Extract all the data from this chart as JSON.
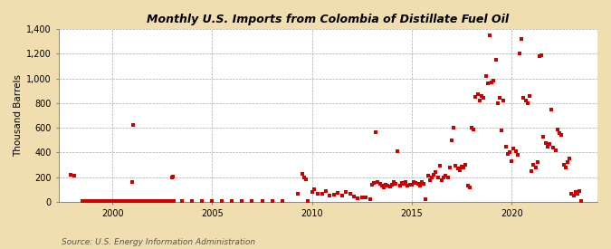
{
  "title": "Monthly U.S. Imports from Colombia of Distillate Fuel Oil",
  "ylabel": "Thousand Barrels",
  "source": "Source: U.S. Energy Information Administration",
  "background_color": "#f0deb0",
  "plot_bg_color": "#ffffff",
  "marker_color": "#cc0000",
  "marker_size": 8,
  "ylim": [
    0,
    1400
  ],
  "yticks": [
    0,
    200,
    400,
    600,
    800,
    1000,
    1200,
    1400
  ],
  "ytick_labels": [
    "0",
    "200",
    "400",
    "600",
    "800",
    "1,000",
    "1,200",
    "1,400"
  ],
  "xlim_start": 1997.3,
  "xlim_end": 2024.3,
  "xticks": [
    2000,
    2005,
    2010,
    2015,
    2020
  ],
  "grid_color": "#aaaaaa",
  "vline_color": "#aaaaaa",
  "data": [
    [
      1997.9,
      220
    ],
    [
      1998.1,
      210
    ],
    [
      1998.5,
      8
    ],
    [
      1998.6,
      8
    ],
    [
      1998.7,
      8
    ],
    [
      1998.8,
      8
    ],
    [
      1998.9,
      8
    ],
    [
      1999.0,
      8
    ],
    [
      1999.1,
      8
    ],
    [
      1999.2,
      8
    ],
    [
      1999.3,
      8
    ],
    [
      1999.4,
      8
    ],
    [
      1999.5,
      8
    ],
    [
      1999.6,
      8
    ],
    [
      1999.7,
      8
    ],
    [
      1999.8,
      8
    ],
    [
      1999.9,
      8
    ],
    [
      2000.0,
      8
    ],
    [
      2000.05,
      8
    ],
    [
      2000.1,
      8
    ],
    [
      2000.15,
      8
    ],
    [
      2000.2,
      8
    ],
    [
      2000.25,
      8
    ],
    [
      2000.3,
      8
    ],
    [
      2000.35,
      8
    ],
    [
      2000.4,
      8
    ],
    [
      2000.45,
      8
    ],
    [
      2000.5,
      8
    ],
    [
      2000.55,
      8
    ],
    [
      2000.6,
      8
    ],
    [
      2000.65,
      8
    ],
    [
      2000.7,
      8
    ],
    [
      2000.75,
      8
    ],
    [
      2000.8,
      8
    ],
    [
      2000.85,
      8
    ],
    [
      2000.9,
      8
    ],
    [
      2000.95,
      8
    ],
    [
      2001.0,
      160
    ],
    [
      2001.05,
      625
    ],
    [
      2001.1,
      8
    ],
    [
      2001.2,
      8
    ],
    [
      2001.3,
      8
    ],
    [
      2001.4,
      8
    ],
    [
      2001.5,
      8
    ],
    [
      2001.6,
      8
    ],
    [
      2001.7,
      8
    ],
    [
      2001.8,
      8
    ],
    [
      2001.9,
      8
    ],
    [
      2002.0,
      8
    ],
    [
      2002.1,
      8
    ],
    [
      2002.2,
      8
    ],
    [
      2002.3,
      8
    ],
    [
      2002.4,
      8
    ],
    [
      2002.5,
      8
    ],
    [
      2002.6,
      8
    ],
    [
      2002.7,
      8
    ],
    [
      2002.8,
      8
    ],
    [
      2002.9,
      8
    ],
    [
      2003.0,
      200
    ],
    [
      2003.05,
      205
    ],
    [
      2003.1,
      8
    ],
    [
      2003.5,
      8
    ],
    [
      2004.0,
      8
    ],
    [
      2004.5,
      8
    ],
    [
      2005.0,
      8
    ],
    [
      2005.5,
      8
    ],
    [
      2006.0,
      8
    ],
    [
      2006.5,
      8
    ],
    [
      2007.0,
      8
    ],
    [
      2007.5,
      8
    ],
    [
      2008.0,
      8
    ],
    [
      2008.5,
      8
    ],
    [
      2009.3,
      70
    ],
    [
      2009.5,
      230
    ],
    [
      2009.6,
      200
    ],
    [
      2009.7,
      185
    ],
    [
      2009.8,
      8
    ],
    [
      2010.0,
      80
    ],
    [
      2010.1,
      100
    ],
    [
      2010.3,
      65
    ],
    [
      2010.5,
      70
    ],
    [
      2010.7,
      90
    ],
    [
      2010.9,
      55
    ],
    [
      2011.1,
      60
    ],
    [
      2011.3,
      75
    ],
    [
      2011.5,
      50
    ],
    [
      2011.7,
      80
    ],
    [
      2011.9,
      65
    ],
    [
      2012.1,
      45
    ],
    [
      2012.3,
      30
    ],
    [
      2012.5,
      40
    ],
    [
      2012.7,
      35
    ],
    [
      2012.9,
      25
    ],
    [
      2013.0,
      140
    ],
    [
      2013.1,
      155
    ],
    [
      2013.2,
      565
    ],
    [
      2013.3,
      160
    ],
    [
      2013.4,
      145
    ],
    [
      2013.5,
      130
    ],
    [
      2013.6,
      120
    ],
    [
      2013.7,
      140
    ],
    [
      2013.8,
      130
    ],
    [
      2013.9,
      125
    ],
    [
      2014.0,
      140
    ],
    [
      2014.1,
      165
    ],
    [
      2014.2,
      145
    ],
    [
      2014.3,
      410
    ],
    [
      2014.4,
      130
    ],
    [
      2014.5,
      155
    ],
    [
      2014.6,
      145
    ],
    [
      2014.7,
      160
    ],
    [
      2014.8,
      130
    ],
    [
      2014.9,
      140
    ],
    [
      2015.0,
      140
    ],
    [
      2015.1,
      160
    ],
    [
      2015.2,
      155
    ],
    [
      2015.3,
      145
    ],
    [
      2015.4,
      135
    ],
    [
      2015.5,
      165
    ],
    [
      2015.6,
      145
    ],
    [
      2015.7,
      25
    ],
    [
      2015.8,
      215
    ],
    [
      2015.9,
      180
    ],
    [
      2016.0,
      200
    ],
    [
      2016.1,
      220
    ],
    [
      2016.2,
      240
    ],
    [
      2016.3,
      200
    ],
    [
      2016.4,
      295
    ],
    [
      2016.5,
      180
    ],
    [
      2016.6,
      195
    ],
    [
      2016.7,
      210
    ],
    [
      2016.8,
      200
    ],
    [
      2016.9,
      280
    ],
    [
      2017.0,
      500
    ],
    [
      2017.1,
      600
    ],
    [
      2017.2,
      295
    ],
    [
      2017.3,
      270
    ],
    [
      2017.4,
      260
    ],
    [
      2017.5,
      290
    ],
    [
      2017.6,
      280
    ],
    [
      2017.7,
      300
    ],
    [
      2017.8,
      130
    ],
    [
      2017.9,
      120
    ],
    [
      2018.0,
      600
    ],
    [
      2018.1,
      590
    ],
    [
      2018.2,
      850
    ],
    [
      2018.3,
      870
    ],
    [
      2018.4,
      820
    ],
    [
      2018.5,
      860
    ],
    [
      2018.6,
      840
    ],
    [
      2018.7,
      1020
    ],
    [
      2018.8,
      960
    ],
    [
      2018.9,
      1350
    ],
    [
      2019.0,
      970
    ],
    [
      2019.1,
      980
    ],
    [
      2019.2,
      1150
    ],
    [
      2019.3,
      800
    ],
    [
      2019.4,
      840
    ],
    [
      2019.5,
      580
    ],
    [
      2019.6,
      820
    ],
    [
      2019.7,
      450
    ],
    [
      2019.8,
      390
    ],
    [
      2019.9,
      400
    ],
    [
      2020.0,
      330
    ],
    [
      2020.1,
      430
    ],
    [
      2020.2,
      410
    ],
    [
      2020.3,
      380
    ],
    [
      2020.4,
      1200
    ],
    [
      2020.5,
      1320
    ],
    [
      2020.6,
      840
    ],
    [
      2020.7,
      820
    ],
    [
      2020.8,
      800
    ],
    [
      2020.9,
      860
    ],
    [
      2021.0,
      250
    ],
    [
      2021.1,
      300
    ],
    [
      2021.2,
      280
    ],
    [
      2021.3,
      320
    ],
    [
      2021.4,
      1180
    ],
    [
      2021.5,
      1190
    ],
    [
      2021.6,
      530
    ],
    [
      2021.7,
      480
    ],
    [
      2021.8,
      450
    ],
    [
      2021.9,
      470
    ],
    [
      2022.0,
      750
    ],
    [
      2022.1,
      440
    ],
    [
      2022.2,
      420
    ],
    [
      2022.3,
      590
    ],
    [
      2022.4,
      560
    ],
    [
      2022.5,
      540
    ],
    [
      2022.6,
      300
    ],
    [
      2022.7,
      280
    ],
    [
      2022.8,
      320
    ],
    [
      2022.9,
      350
    ],
    [
      2023.0,
      65
    ],
    [
      2023.1,
      55
    ],
    [
      2023.2,
      80
    ],
    [
      2023.3,
      70
    ],
    [
      2023.4,
      90
    ],
    [
      2023.5,
      10
    ]
  ]
}
